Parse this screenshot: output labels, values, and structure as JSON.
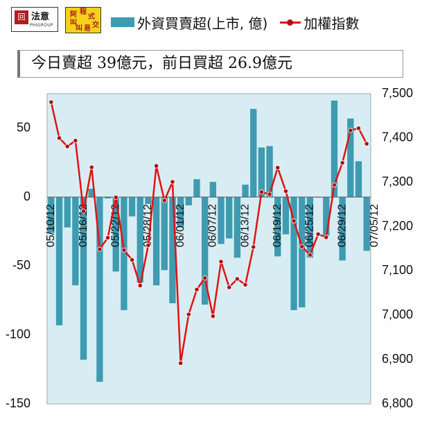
{
  "logos": {
    "logo1": {
      "mark": "回",
      "name": "法意",
      "sub": "PHIGROUP"
    },
    "logo2": {
      "glyphs": [
        "程",
        "式",
        "交",
        "易",
        "阿",
        "叫",
        "叫"
      ]
    }
  },
  "summary_text": "今日賣超 39億元，前日買超 26.9億元",
  "colors": {
    "bar": "#3e9bb1",
    "line": "#e21111",
    "marker": "#b01010",
    "plot_bg": "#d8edf3"
  },
  "chart_data": {
    "type": "bar+line",
    "title": "",
    "legend": {
      "placement": "top",
      "entries": [
        {
          "label": "外資買賣超(上市, 億)",
          "kind": "bar"
        },
        {
          "label": "加權指數",
          "kind": "line"
        }
      ]
    },
    "y_left": {
      "range": [
        -150,
        75
      ],
      "ticks": [
        50,
        0,
        -50,
        -100,
        -150
      ]
    },
    "y_right": {
      "range": [
        6800,
        7500
      ],
      "ticks": [
        "7,500",
        "7,400",
        "7,300",
        "7,200",
        "7,100",
        "7,000",
        "6,900",
        "6,800"
      ]
    },
    "x_tick_labels": [
      {
        "index": 0,
        "label": "05/10/12"
      },
      {
        "index": 4,
        "label": "05/16/12"
      },
      {
        "index": 8,
        "label": "05/22/12"
      },
      {
        "index": 12,
        "label": "05/28/12"
      },
      {
        "index": 16,
        "label": "06/01/12"
      },
      {
        "index": 20,
        "label": "06/07/12"
      },
      {
        "index": 24,
        "label": "06/13/12"
      },
      {
        "index": 28,
        "label": "06/19/12"
      },
      {
        "index": 32,
        "label": "06/25/12"
      },
      {
        "index": 36,
        "label": "06/29/12"
      },
      {
        "index": 40,
        "label": "07/05/12"
      }
    ],
    "series": [
      {
        "kind": "bar",
        "axis": "left",
        "values": [
          -26,
          -93,
          -22,
          -64,
          -118,
          6,
          -134,
          -1,
          -54,
          -82,
          -14,
          -62,
          -5,
          -64,
          -53,
          -77,
          -22,
          -6,
          13,
          -78,
          11,
          -34,
          -30,
          -44,
          9,
          64,
          36,
          37,
          -43,
          -27,
          -82,
          -80,
          -44,
          0,
          -28,
          70,
          -46,
          57,
          26,
          -39
        ]
      },
      {
        "kind": "line",
        "axis": "right",
        "values": [
          7481,
          7400,
          7381,
          7394,
          7235,
          7334,
          7149,
          7175,
          7266,
          7147,
          7125,
          7067,
          7158,
          7337,
          7259,
          7301,
          6892,
          7002,
          7058,
          7084,
          6998,
          7121,
          7063,
          7082,
          7069,
          7154,
          7278,
          7273,
          7333,
          7280,
          7213,
          7155,
          7136,
          7183,
          7176,
          7294,
          7344,
          7417,
          7422,
          7387
        ]
      }
    ]
  }
}
